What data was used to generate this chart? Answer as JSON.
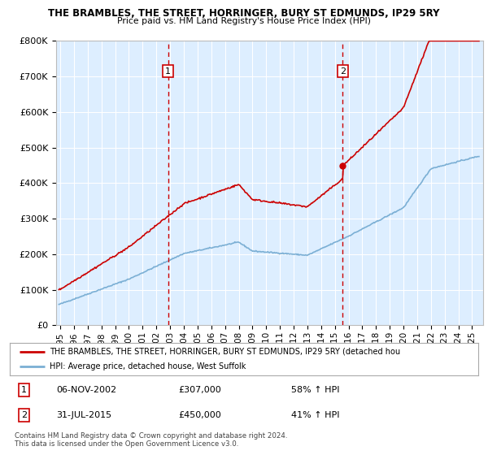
{
  "title": "THE BRAMBLES, THE STREET, HORRINGER, BURY ST EDMUNDS, IP29 5RY",
  "subtitle": "Price paid vs. HM Land Registry's House Price Index (HPI)",
  "ytick_values": [
    0,
    100000,
    200000,
    300000,
    400000,
    500000,
    600000,
    700000,
    800000
  ],
  "ylim": [
    0,
    800000
  ],
  "xlim_start": 1994.7,
  "xlim_end": 2025.8,
  "xticks": [
    1995,
    1996,
    1997,
    1998,
    1999,
    2000,
    2001,
    2002,
    2003,
    2004,
    2005,
    2006,
    2007,
    2008,
    2009,
    2010,
    2011,
    2012,
    2013,
    2014,
    2015,
    2016,
    2017,
    2018,
    2019,
    2020,
    2021,
    2022,
    2023,
    2024,
    2025
  ],
  "purchase1_x": 2002.85,
  "purchase1_y": 307000,
  "purchase1_date": "06-NOV-2002",
  "purchase1_price": "£307,000",
  "purchase1_hpi": "58% ↑ HPI",
  "purchase2_x": 2015.58,
  "purchase2_y": 450000,
  "purchase2_date": "31-JUL-2015",
  "purchase2_price": "£450,000",
  "purchase2_hpi": "41% ↑ HPI",
  "red_line_color": "#cc0000",
  "blue_line_color": "#7bafd4",
  "background_color": "#ddeeff",
  "grid_color": "#ffffff",
  "legend_line1": "THE BRAMBLES, THE STREET, HORRINGER, BURY ST EDMUNDS, IP29 5RY (detached hou",
  "legend_line2": "HPI: Average price, detached house, West Suffolk",
  "footnote1": "Contains HM Land Registry data © Crown copyright and database right 2024.",
  "footnote2": "This data is licensed under the Open Government Licence v3.0."
}
